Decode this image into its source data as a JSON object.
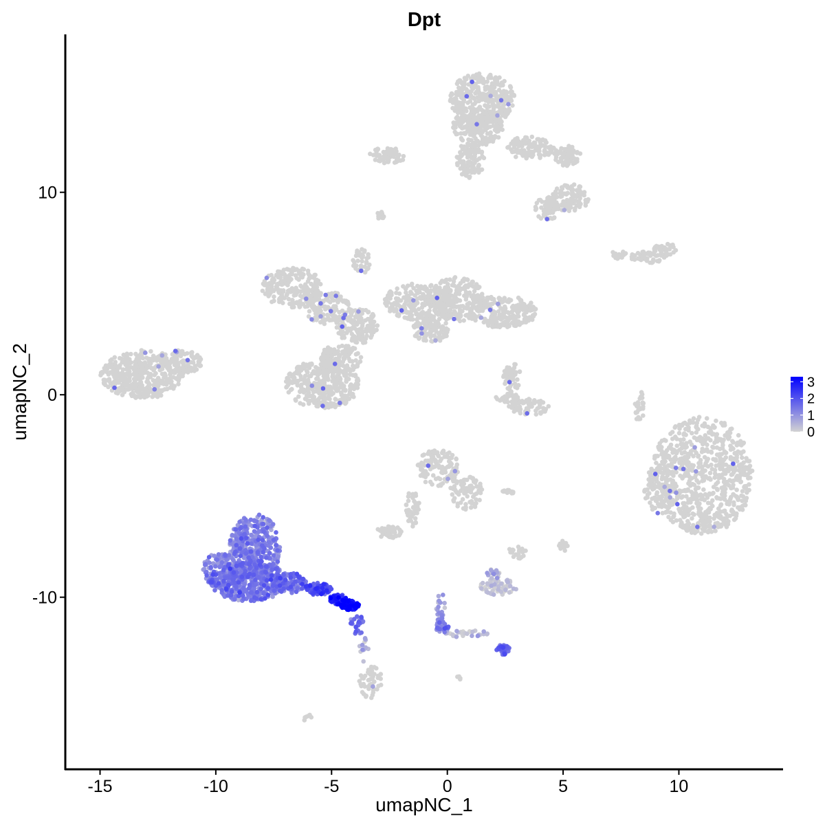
{
  "chart_data": {
    "type": "scatter",
    "title": "Dpt",
    "xlabel": "umapNC_1",
    "ylabel": "umapNC_2",
    "xlim": [
      -16.5,
      14.5
    ],
    "ylim": [
      -18.5,
      17.8
    ],
    "x_ticks": [
      -15,
      -10,
      -5,
      0,
      5,
      10
    ],
    "y_ticks": [
      10,
      0,
      -10
    ],
    "x_tick_labels": [
      "-15",
      "-10",
      "-5",
      "0",
      "5",
      "10"
    ],
    "y_tick_labels": [
      "10",
      "0",
      "-10"
    ],
    "legend": {
      "placement": "right",
      "range": [
        0,
        3.3
      ],
      "ticks": [
        3,
        2,
        1,
        0
      ],
      "tick_labels": [
        "3",
        "2",
        "1",
        "0"
      ],
      "color_low": "#d3d3d3",
      "color_high": "#0000ff"
    },
    "colors": {
      "low": "#d3d3d3",
      "high": "#0000ff"
    },
    "clusters": [
      {
        "cx": -13.2,
        "cy": 1.0,
        "rx": 1.8,
        "ry": 1.2,
        "n": 420,
        "expr": 0
      },
      {
        "cx": -11.5,
        "cy": 1.6,
        "rx": 0.9,
        "ry": 0.6,
        "n": 90,
        "expr": 0
      },
      {
        "cx": -6.7,
        "cy": 5.3,
        "rx": 1.3,
        "ry": 1.0,
        "n": 220,
        "expr": 0
      },
      {
        "cx": -5.2,
        "cy": 4.3,
        "rx": 1.0,
        "ry": 0.8,
        "n": 140,
        "expr": 0
      },
      {
        "cx": -3.9,
        "cy": 3.4,
        "rx": 0.9,
        "ry": 0.9,
        "n": 150,
        "expr": 0
      },
      {
        "cx": -5.4,
        "cy": 0.5,
        "rx": 1.6,
        "ry": 1.2,
        "n": 360,
        "expr": 0
      },
      {
        "cx": -4.6,
        "cy": 1.8,
        "rx": 0.9,
        "ry": 0.7,
        "n": 120,
        "expr": 0
      },
      {
        "cx": -3.7,
        "cy": 6.6,
        "rx": 0.4,
        "ry": 0.6,
        "n": 40,
        "expr": 0
      },
      {
        "cx": -1.3,
        "cy": 4.6,
        "rx": 1.4,
        "ry": 0.9,
        "n": 240,
        "expr": 0
      },
      {
        "cx": 0.4,
        "cy": 4.7,
        "rx": 1.2,
        "ry": 1.1,
        "n": 240,
        "expr": 0
      },
      {
        "cx": -0.7,
        "cy": 3.2,
        "rx": 0.8,
        "ry": 0.6,
        "n": 110,
        "expr": 0
      },
      {
        "cx": 2.4,
        "cy": 4.1,
        "rx": 1.5,
        "ry": 0.8,
        "n": 220,
        "expr": 0
      },
      {
        "cx": 1.5,
        "cy": 14.6,
        "rx": 1.4,
        "ry": 1.3,
        "n": 320,
        "expr": 0
      },
      {
        "cx": 1.3,
        "cy": 13.2,
        "rx": 1.1,
        "ry": 0.9,
        "n": 200,
        "expr": 0
      },
      {
        "cx": 1.0,
        "cy": 11.6,
        "rx": 0.6,
        "ry": 0.9,
        "n": 100,
        "expr": 0
      },
      {
        "cx": 3.6,
        "cy": 12.2,
        "rx": 1.0,
        "ry": 0.6,
        "n": 120,
        "expr": 0
      },
      {
        "cx": 5.2,
        "cy": 11.8,
        "rx": 0.6,
        "ry": 0.5,
        "n": 70,
        "expr": 0
      },
      {
        "cx": 5.3,
        "cy": 9.7,
        "rx": 0.8,
        "ry": 0.7,
        "n": 110,
        "expr": 0
      },
      {
        "cx": 4.3,
        "cy": 9.2,
        "rx": 0.5,
        "ry": 0.6,
        "n": 60,
        "expr": 0
      },
      {
        "cx": -2.6,
        "cy": 11.8,
        "rx": 0.8,
        "ry": 0.4,
        "n": 60,
        "expr": 0
      },
      {
        "cx": -2.9,
        "cy": 8.8,
        "rx": 0.2,
        "ry": 0.25,
        "n": 12,
        "expr": 0
      },
      {
        "cx": 7.4,
        "cy": 6.9,
        "rx": 0.4,
        "ry": 0.2,
        "n": 20,
        "expr": 0
      },
      {
        "cx": 8.7,
        "cy": 6.8,
        "rx": 0.8,
        "ry": 0.3,
        "n": 50,
        "expr": 0
      },
      {
        "cx": 9.4,
        "cy": 7.2,
        "rx": 0.5,
        "ry": 0.3,
        "n": 30,
        "expr": 0
      },
      {
        "cx": 2.8,
        "cy": 0.9,
        "rx": 0.4,
        "ry": 0.7,
        "n": 50,
        "expr": 0
      },
      {
        "cx": 3.5,
        "cy": -0.6,
        "rx": 0.9,
        "ry": 0.4,
        "n": 70,
        "expr": 0
      },
      {
        "cx": 2.6,
        "cy": -0.1,
        "rx": 0.5,
        "ry": 0.3,
        "n": 25,
        "expr": 0
      },
      {
        "cx": 8.3,
        "cy": -0.6,
        "rx": 0.2,
        "ry": 0.8,
        "n": 30,
        "expr": 0
      },
      {
        "cx": 11.0,
        "cy": -4.0,
        "rx": 2.2,
        "ry": 2.9,
        "n": 760,
        "expr": 0
      },
      {
        "cx": 9.2,
        "cy": -4.7,
        "rx": 0.7,
        "ry": 1.2,
        "n": 90,
        "expr": 0
      },
      {
        "cx": -0.4,
        "cy": -3.6,
        "rx": 0.9,
        "ry": 0.9,
        "n": 120,
        "expr": 0
      },
      {
        "cx": 0.8,
        "cy": -4.8,
        "rx": 0.7,
        "ry": 0.9,
        "n": 80,
        "expr": 0
      },
      {
        "cx": -1.5,
        "cy": -5.6,
        "rx": 0.3,
        "ry": 0.9,
        "n": 40,
        "expr": 0
      },
      {
        "cx": -2.5,
        "cy": -6.8,
        "rx": 0.6,
        "ry": 0.3,
        "n": 40,
        "expr": 0
      },
      {
        "cx": 2.7,
        "cy": -4.8,
        "rx": 0.4,
        "ry": 0.1,
        "n": 15,
        "expr": 0
      },
      {
        "cx": 5.0,
        "cy": -7.5,
        "rx": 0.2,
        "ry": 0.3,
        "n": 15,
        "expr": 0
      },
      {
        "cx": 3.0,
        "cy": -7.8,
        "rx": 0.4,
        "ry": 0.3,
        "n": 20,
        "expr": 0
      },
      {
        "cx": 2.2,
        "cy": -9.5,
        "rx": 0.8,
        "ry": 0.4,
        "n": 60,
        "expr": 0.15
      },
      {
        "cx": 2.0,
        "cy": -8.8,
        "rx": 0.3,
        "ry": 0.3,
        "n": 18,
        "expr": 0.45
      },
      {
        "cx": -3.3,
        "cy": -14.2,
        "rx": 0.5,
        "ry": 0.8,
        "n": 50,
        "expr": 0
      },
      {
        "cx": -6.0,
        "cy": -16.0,
        "rx": 0.2,
        "ry": 0.2,
        "n": 6,
        "expr": 0
      },
      {
        "cx": -8.3,
        "cy": -7.5,
        "rx": 1.1,
        "ry": 1.6,
        "n": 380,
        "expr": 1.2
      },
      {
        "cx": -8.6,
        "cy": -9.2,
        "rx": 1.7,
        "ry": 1.0,
        "n": 440,
        "expr": 1.3
      },
      {
        "cx": -9.8,
        "cy": -8.7,
        "rx": 0.8,
        "ry": 0.9,
        "n": 120,
        "expr": 1.15
      },
      {
        "cx": -6.8,
        "cy": -9.3,
        "rx": 0.7,
        "ry": 0.5,
        "n": 120,
        "expr": 1.4
      },
      {
        "cx": -5.6,
        "cy": -9.6,
        "rx": 0.6,
        "ry": 0.3,
        "n": 80,
        "expr": 1.9
      },
      {
        "cx": -4.7,
        "cy": -10.1,
        "rx": 0.4,
        "ry": 0.25,
        "n": 60,
        "expr": 2.5
      },
      {
        "cx": -4.2,
        "cy": -10.4,
        "rx": 0.4,
        "ry": 0.25,
        "n": 70,
        "expr": 3.0
      },
      {
        "cx": -3.9,
        "cy": -11.3,
        "rx": 0.3,
        "ry": 0.6,
        "n": 26,
        "expr": 1.4
      },
      {
        "cx": -3.6,
        "cy": -12.6,
        "rx": 0.2,
        "ry": 0.6,
        "n": 14,
        "expr": 0.5
      },
      {
        "cx": -0.3,
        "cy": -10.6,
        "rx": 0.2,
        "ry": 0.9,
        "n": 30,
        "expr": 0.9
      },
      {
        "cx": -0.2,
        "cy": -11.5,
        "rx": 0.3,
        "ry": 0.3,
        "n": 22,
        "expr": 1.2
      },
      {
        "cx": 0.8,
        "cy": -11.8,
        "rx": 1.0,
        "ry": 0.2,
        "n": 30,
        "expr": 0.2
      },
      {
        "cx": 2.4,
        "cy": -12.6,
        "rx": 0.3,
        "ry": 0.25,
        "n": 45,
        "expr": 1.6
      },
      {
        "cx": 0.5,
        "cy": -14.0,
        "rx": 0.1,
        "ry": 0.1,
        "n": 4,
        "expr": 0
      }
    ]
  }
}
